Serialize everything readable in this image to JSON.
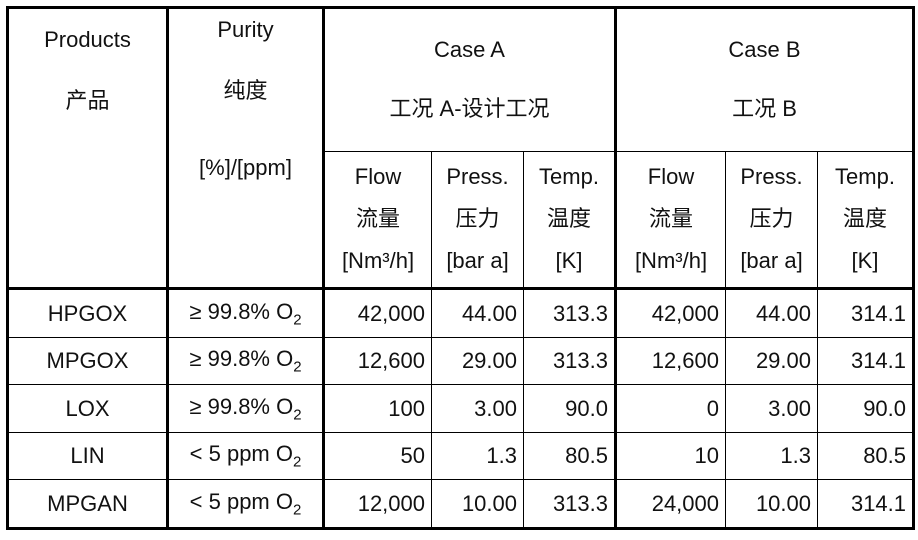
{
  "header": {
    "products_en": "Products",
    "products_cn": "产品",
    "purity_en": "Purity",
    "purity_cn": "纯度",
    "purity_unit": "[%]/[ppm]",
    "caseA_en": "Case A",
    "caseA_cn": "工况 A-设计工况",
    "caseB_en": "Case B",
    "caseB_cn": "工况 B",
    "sub": [
      {
        "en": "Flow",
        "cn": "流量",
        "unit": "[Nm³/h]"
      },
      {
        "en": "Press.",
        "cn": "压力",
        "unit": "[bar a]"
      },
      {
        "en": "Temp.",
        "cn": "温度",
        "unit": "[K]"
      }
    ]
  },
  "rows": [
    {
      "product": "HPGOX",
      "purity": "≥ 99.8% O2",
      "a_flow": "42,000",
      "a_press": "44.00",
      "a_temp": "313.3",
      "b_flow": "42,000",
      "b_press": "44.00",
      "b_temp": "314.1"
    },
    {
      "product": "MPGOX",
      "purity": "≥ 99.8% O2",
      "a_flow": "12,600",
      "a_press": "29.00",
      "a_temp": "313.3",
      "b_flow": "12,600",
      "b_press": "29.00",
      "b_temp": "314.1"
    },
    {
      "product": "LOX",
      "purity": "≥ 99.8% O2",
      "a_flow": "100",
      "a_press": "3.00",
      "a_temp": "90.0",
      "b_flow": "0",
      "b_press": "3.00",
      "b_temp": "90.0"
    },
    {
      "product": "LIN",
      "purity": "< 5 ppm O2",
      "a_flow": "50",
      "a_press": "1.3",
      "a_temp": "80.5",
      "b_flow": "10",
      "b_press": "1.3",
      "b_temp": "80.5"
    },
    {
      "product": "MPGAN",
      "purity": "< 5 ppm O2",
      "a_flow": "12,000",
      "a_press": "10.00",
      "a_temp": "313.3",
      "b_flow": "24,000",
      "b_press": "10.00",
      "b_temp": "314.1"
    }
  ]
}
